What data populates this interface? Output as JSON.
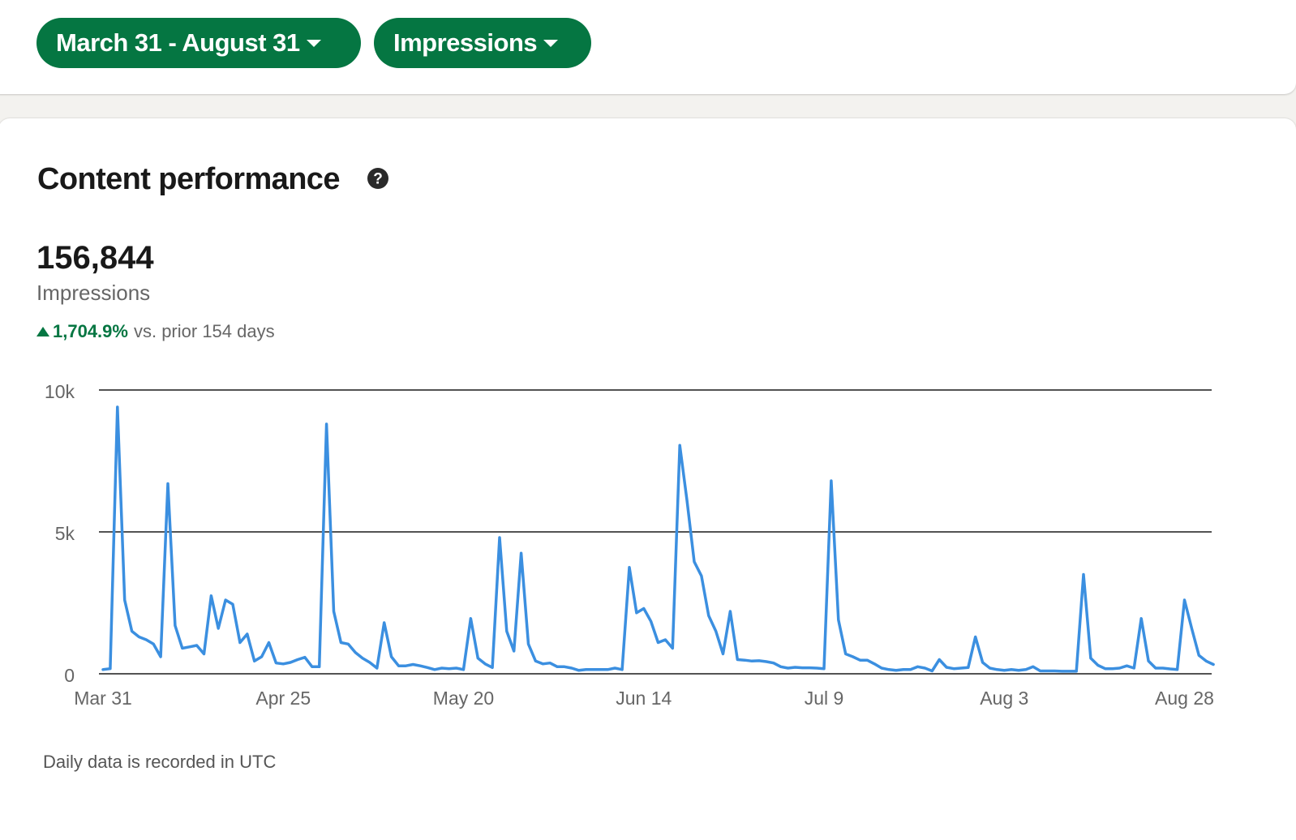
{
  "filters": {
    "date_range_label": "March 31 - August 31",
    "metric_label": "Impressions"
  },
  "header": {
    "title": "Content performance",
    "help_icon": "question-circle-icon"
  },
  "summary": {
    "total": "156,844",
    "metric": "Impressions",
    "change_value": "1,704.9%",
    "change_text": "vs. prior 154 days",
    "change_direction": "up"
  },
  "colors": {
    "accent": "#057642",
    "line": "#3b8fe0"
  },
  "footnote": "Daily data is recorded in UTC",
  "chart_data": {
    "type": "line",
    "title": "",
    "xlabel": "",
    "ylabel": "",
    "x_start": "Mar 31",
    "ylim": [
      0,
      10000
    ],
    "yticks": [
      {
        "value": 0,
        "label": "0"
      },
      {
        "value": 5000,
        "label": "5k"
      },
      {
        "value": 10000,
        "label": "10k"
      }
    ],
    "xticks": [
      {
        "index": 0,
        "label": "Mar 31"
      },
      {
        "index": 25,
        "label": "Apr 25"
      },
      {
        "index": 50,
        "label": "May 20"
      },
      {
        "index": 75,
        "label": "Jun 14"
      },
      {
        "index": 100,
        "label": "Jul 9"
      },
      {
        "index": 125,
        "label": "Aug 3"
      },
      {
        "index": 150,
        "label": "Aug 28"
      }
    ],
    "grid": true,
    "series": [
      {
        "values": [
          150,
          180,
          9400,
          2600,
          1500,
          1300,
          1200,
          1050,
          600,
          6700,
          1700,
          900,
          950,
          1000,
          700,
          2750,
          1600,
          2600,
          2450,
          1100,
          1400,
          450,
          600,
          1100,
          380,
          350,
          400,
          500,
          580,
          250,
          250,
          8800,
          2200,
          1100,
          1050,
          750,
          550,
          400,
          200,
          1800,
          600,
          280,
          280,
          330,
          280,
          220,
          150,
          200,
          180,
          200,
          150,
          1950,
          550,
          350,
          220,
          4800,
          1500,
          800,
          4250,
          1050,
          450,
          350,
          380,
          250,
          250,
          200,
          120,
          150,
          150,
          150,
          150,
          200,
          150,
          3750,
          2150,
          2300,
          1850,
          1100,
          1200,
          900,
          8050,
          6100,
          3950,
          3450,
          2050,
          1500,
          700,
          2200,
          500,
          480,
          450,
          460,
          430,
          380,
          250,
          200,
          230,
          210,
          210,
          200,
          180,
          6800,
          1900,
          700,
          600,
          480,
          480,
          350,
          200,
          150,
          120,
          150,
          150,
          250,
          200,
          100,
          500,
          230,
          180,
          200,
          220,
          1300,
          400,
          200,
          150,
          120,
          150,
          120,
          150,
          250,
          100,
          100,
          100,
          90,
          90,
          90,
          3500,
          550,
          300,
          180,
          180,
          200,
          280,
          200,
          1950,
          450,
          200,
          200,
          170,
          150,
          2600,
          1600,
          650,
          450,
          330
        ]
      }
    ]
  }
}
